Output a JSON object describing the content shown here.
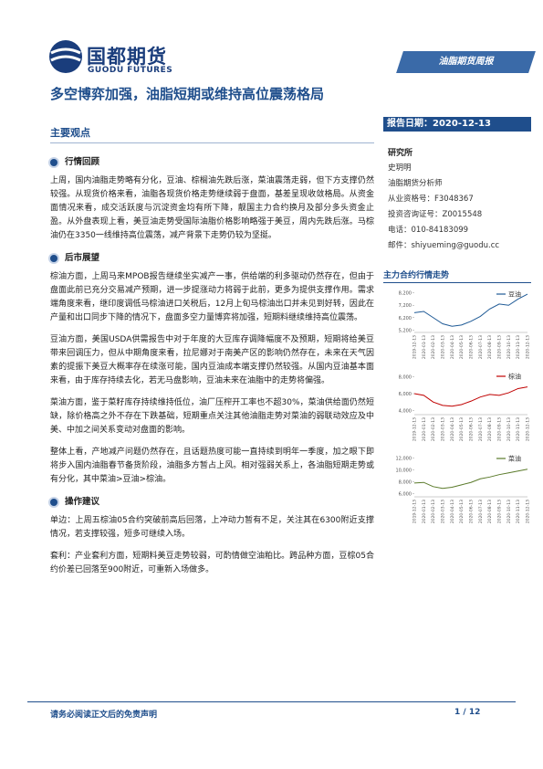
{
  "header": {
    "logo_cn": "国都期货",
    "logo_en": "GUODU FUTURES",
    "banner": "油脂期货周报"
  },
  "title": "多空博弈加强，油脂短期或维持高位震荡格局",
  "section_title": "主要观点",
  "sections": [
    {
      "heading": "行情回顾",
      "paragraphs": [
        "上周，国内油脂走势略有分化，豆油、棕榈油先跌后涨，菜油震荡走弱，但下方支撑仍然较强。从现货价格来看，油脂各现货价格走势继续弱于盘面，基差呈现收敛格局。从资金面情况来看，成交活跃度与沉淀资金均有所下降，靓国主力合约换月及部分多头资金止盈。从外盘表现上看，美豆油走势受国际油脂价格影响略强于美豆，周内先跌后涨。马棕油仍在3350一线维持高位震荡，减产背景下走势仍较为坚挺。"
      ]
    },
    {
      "heading": "后市展望",
      "paragraphs": [
        "棕油方面，上周马来MPOB报告继续坐实减产一事，供给端的利多驱动仍然存在，但由于盘面此前已充分交易减产预期，进一步提涨动力将弱于此前，更多为提供支撑作用。需求端角度来看，继印度调低马棕油进口关税后，12月上旬马棕油出口并未见到好转，因此在产量和出口同步下降的情况下，盘面多空力量博弈将加强，短期料继续维持高位震荡。",
        "豆油方面，美国USDA供需报告中对于年度的大豆库存调降幅度不及预期，短期将给美豆带来回调压力，但从中期角度来看，拉尼娜对于南美产区的影响仍然存在，未来在天气因素的提振下美豆大概率存在续涨可能，国内豆油成本端支撑仍然较强。从国内豆油基本面来看，由于库存持续去化，若无马盘影响，豆油未来在油脂中的走势将偏强。",
        "菜油方面，鉴于菜籽库存持续维持低位，油厂压榨开工率也不超30%，菜油供给面仍然短缺，除价格高之外不存在下跌基础，短期重点关注其他油脂走势对菜油的弱联动效应及中美、中加之间关系变动对盘面的影响。",
        "整体上看，产地减产问题仍然存在，且话题热度可能一直持续到明年一季度，加之眼下即将步入国内油脂春节备货阶段，油脂多方暂占上风。相对强弱关系上，各油脂短期走势或有分化，其中菜油>豆油>棕油。"
      ]
    },
    {
      "heading": "操作建议",
      "paragraphs": [
        "单边：上周五棕油05合约突破前高后回落，上冲动力暂有不足，关注其在6300附近支撑情况，若支撑较强，短多可继续入场。",
        "套利：产业套利方面，短期料美豆走势较弱，可酌情做空油粕比。跨品种方面，豆棕05合约价差已回落至900附近，可重新入场做多。"
      ]
    }
  ],
  "sidebar": {
    "report_date": "报告日期：2020-12-13",
    "institute": "研究所",
    "lines": [
      "史玥明",
      "油脂期货分析师",
      "从业资格号：F3048367",
      "投资咨询证号：Z0015548",
      "电话：010-84183099",
      "邮件：shiyueming@guodu.cc"
    ],
    "charts_title": "主力合约行情走势"
  },
  "chart_data": [
    {
      "type": "line",
      "categories": [
        "2019-12-13",
        "2020-01-13",
        "2020-02-13",
        "2020-03-13",
        "2020-04-13",
        "2020-05-13",
        "2020-06-13",
        "2020-07-13",
        "2020-08-13",
        "2020-09-13",
        "2020-10-13",
        "2020-11-13",
        "2020-12-13"
      ],
      "series": [
        {
          "name": "豆油",
          "color": "#1f5a96",
          "values": [
            6600,
            6700,
            6200,
            5700,
            5500,
            5600,
            5900,
            6300,
            6900,
            7300,
            7200,
            7700,
            8100
          ]
        }
      ],
      "ylim": [
        5000,
        8400
      ],
      "yticks": [
        {
          "value": 5200,
          "label": "5,200"
        },
        {
          "value": 6200,
          "label": "6,200"
        },
        {
          "value": 7200,
          "label": "7,200"
        },
        {
          "value": 8200,
          "label": "8,200"
        }
      ],
      "grid": false,
      "legend": "upper right"
    },
    {
      "type": "line",
      "categories": [
        "2019-12-13",
        "2020-01-13",
        "2020-02-13",
        "2020-03-13",
        "2020-04-13",
        "2020-05-13",
        "2020-06-13",
        "2020-07-13",
        "2020-08-13",
        "2020-09-13",
        "2020-10-13",
        "2020-11-13",
        "2020-12-13"
      ],
      "series": [
        {
          "name": "棕油",
          "color": "#c00000",
          "values": [
            6000,
            5800,
            5000,
            4600,
            4500,
            4700,
            5100,
            5600,
            5900,
            5800,
            6100,
            6600,
            6800
          ]
        }
      ],
      "ylim": [
        3500,
        8500
      ],
      "yticks": [
        {
          "value": 4000,
          "label": "4,000"
        },
        {
          "value": 6000,
          "label": "6,000"
        },
        {
          "value": 8000,
          "label": "8,000"
        }
      ],
      "grid": false,
      "legend": "upper right"
    },
    {
      "type": "line",
      "categories": [
        "2019-12-13",
        "2020-01-13",
        "2020-02-13",
        "2020-03-13",
        "2020-04-13",
        "2020-05-13",
        "2020-06-13",
        "2020-07-13",
        "2020-08-13",
        "2020-09-13",
        "2020-10-13",
        "2020-11-13",
        "2020-12-13"
      ],
      "series": [
        {
          "name": "菜油",
          "color": "#5a7a2a",
          "values": [
            7800,
            7900,
            7200,
            6900,
            7100,
            7500,
            7900,
            8500,
            8800,
            9200,
            9500,
            9800,
            10100
          ]
        }
      ],
      "ylim": [
        5500,
        12500
      ],
      "yticks": [
        {
          "value": 6000,
          "label": "6,000"
        },
        {
          "value": 8000,
          "label": "8,000"
        },
        {
          "value": 10000,
          "label": "10,000"
        },
        {
          "value": 12000,
          "label": "12,000"
        }
      ],
      "grid": false,
      "legend": "upper right"
    }
  ],
  "footer": {
    "disclaimer": "请务必阅读正文后的免责声明",
    "page": "1 / 12"
  }
}
